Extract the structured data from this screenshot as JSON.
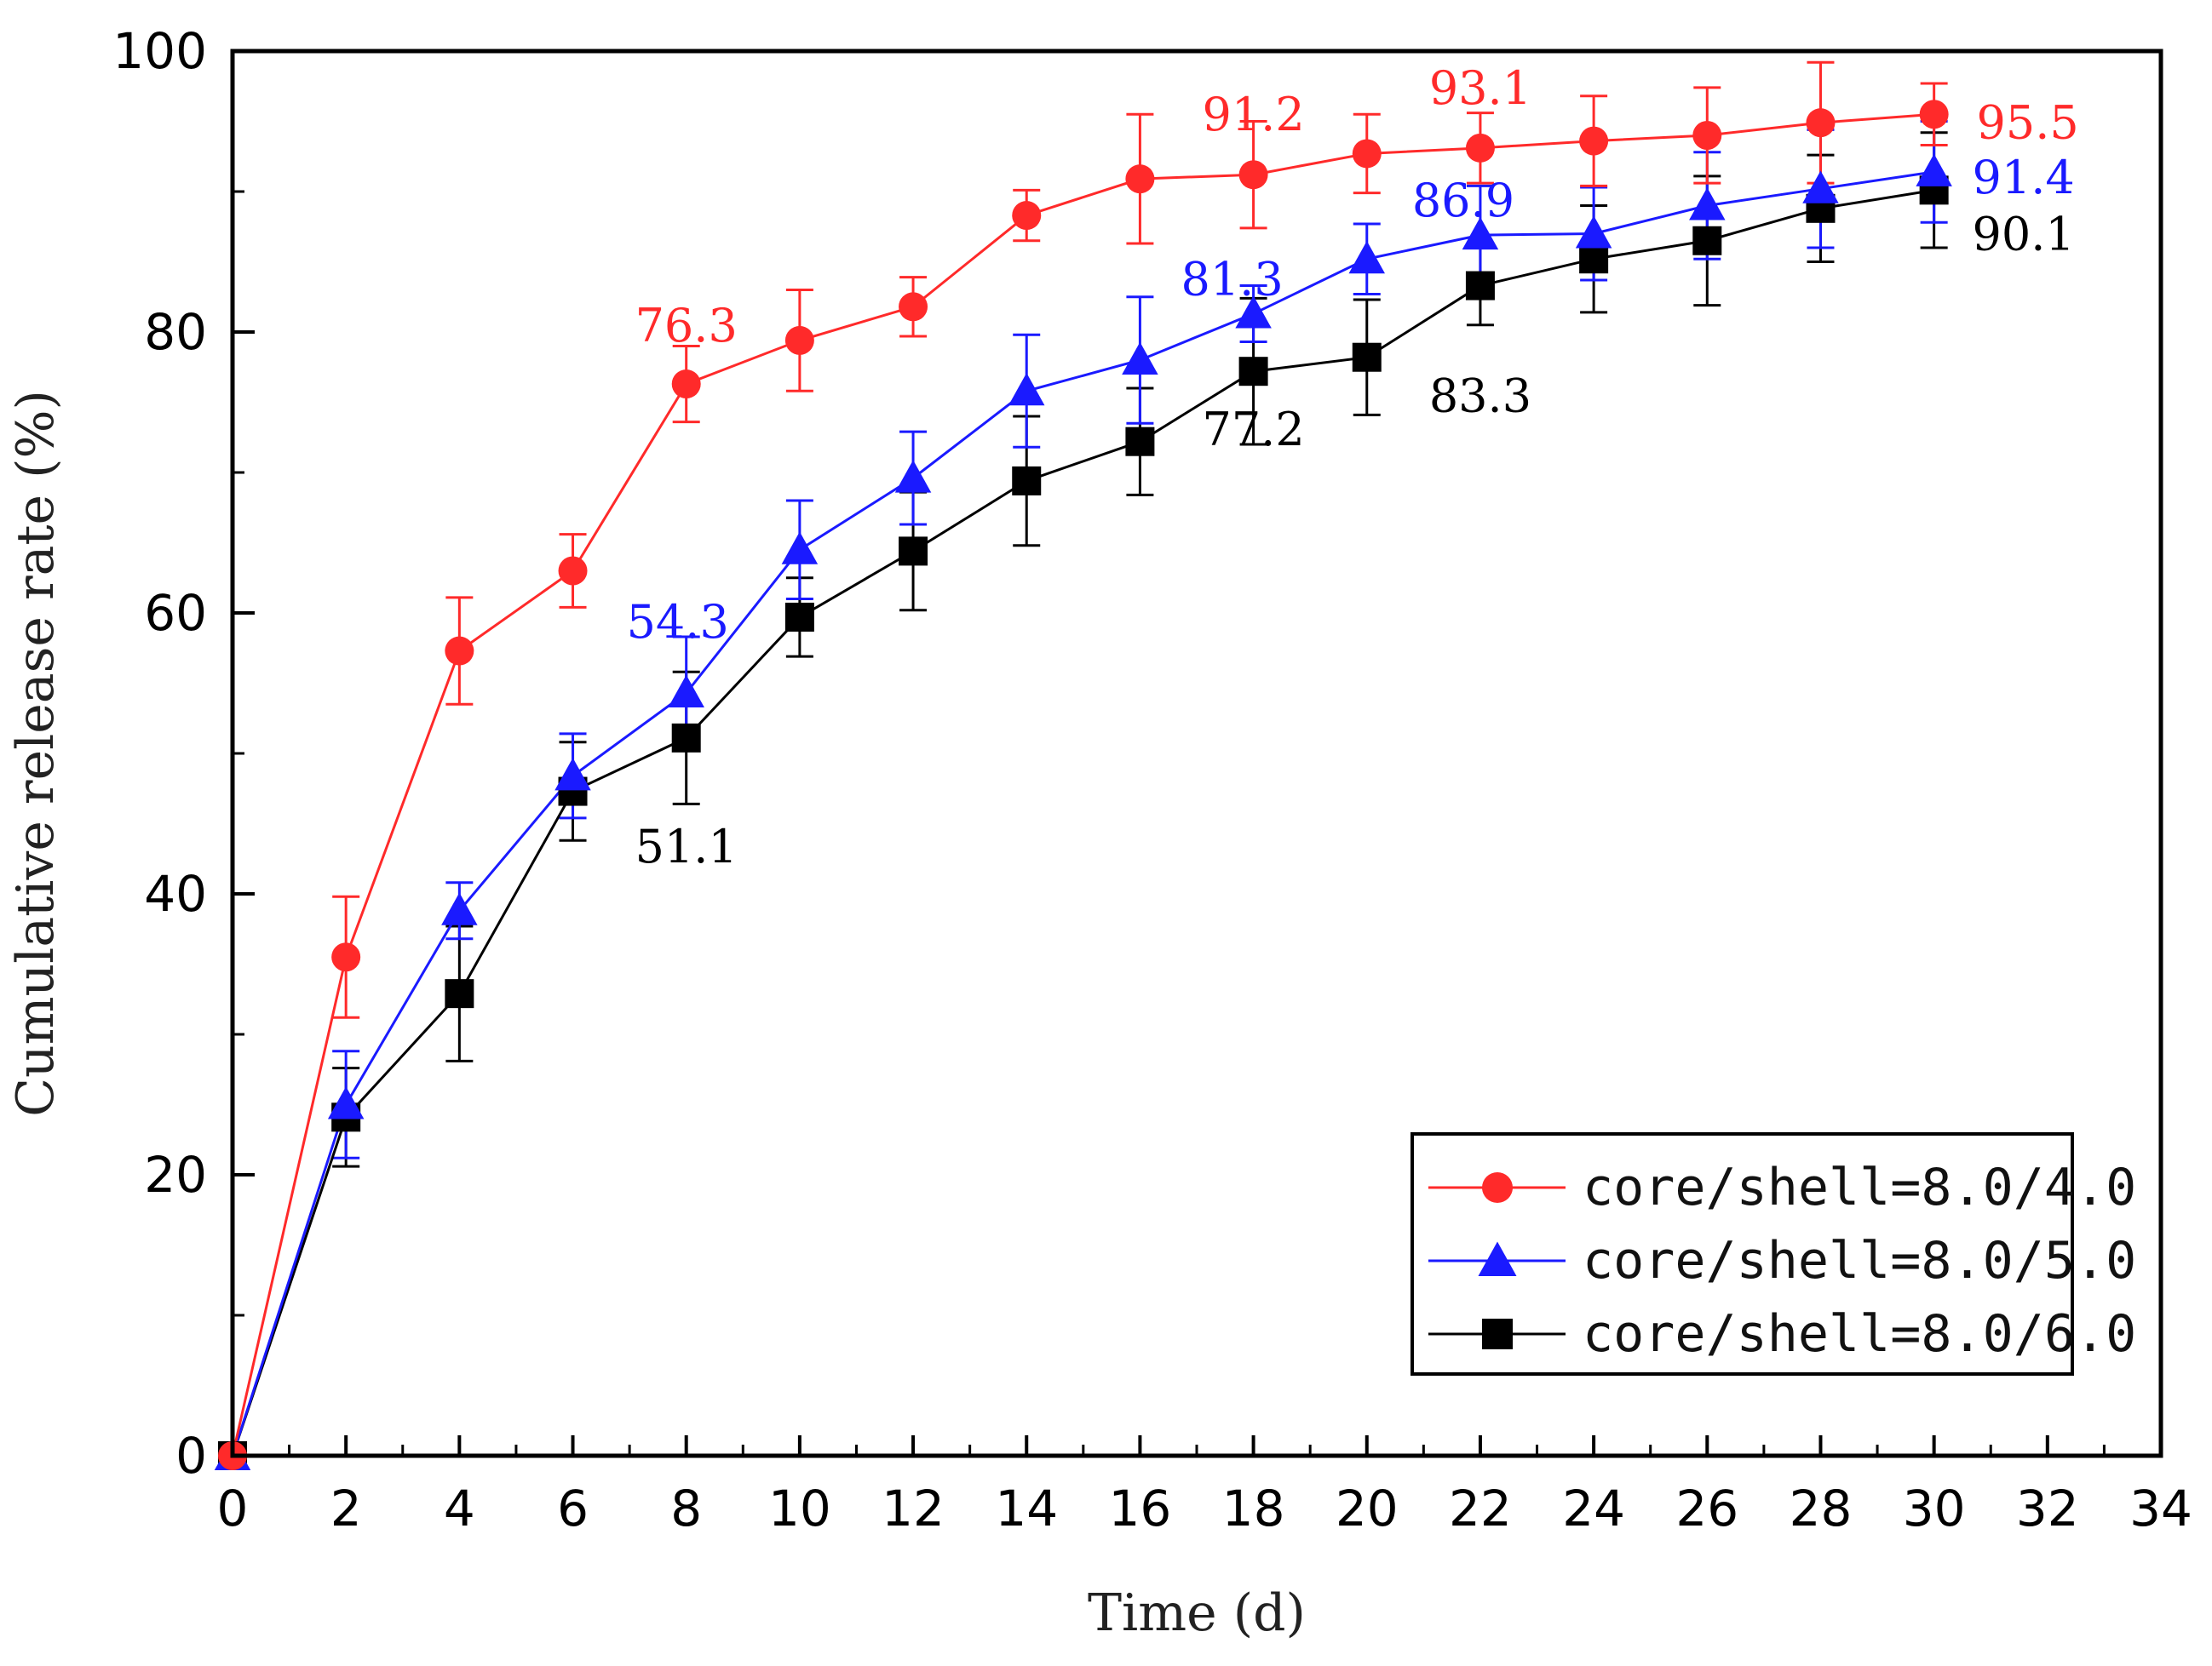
{
  "chart_data": {
    "type": "line",
    "title": "",
    "xlabel": "Time (d)",
    "ylabel": "Cumulative release rate (%)",
    "xlim": [
      0,
      34
    ],
    "ylim": [
      0,
      100
    ],
    "x_ticks": [
      0,
      2,
      4,
      6,
      8,
      10,
      12,
      14,
      16,
      18,
      20,
      22,
      24,
      26,
      28,
      30,
      32,
      34
    ],
    "x_tick_labels": [
      "0",
      "2",
      "4",
      "6",
      "8",
      "10",
      "12",
      "14",
      "16",
      "18",
      "20",
      "22",
      "24",
      "26",
      "28",
      "30",
      "32",
      "34"
    ],
    "y_ticks": [
      0,
      20,
      40,
      60,
      80,
      100
    ],
    "y_tick_labels": [
      "0",
      "20",
      "40",
      "60",
      "80",
      "100"
    ],
    "grid": false,
    "legend_position": "bottom-right",
    "x": [
      0,
      2,
      4,
      6,
      8,
      10,
      12,
      14,
      16,
      18,
      20,
      22,
      24,
      26,
      28,
      30
    ],
    "series": [
      {
        "name": "core/shell=8.0/4.0",
        "color": "#ff2a2a",
        "marker": "circle",
        "values": [
          0,
          35.5,
          57.3,
          63.0,
          76.3,
          79.4,
          81.8,
          88.3,
          90.9,
          91.2,
          92.7,
          93.1,
          93.6,
          94.0,
          94.9,
          95.5
        ],
        "errors": [
          0,
          4.3,
          3.8,
          2.6,
          2.7,
          3.6,
          2.1,
          1.8,
          4.6,
          3.8,
          2.8,
          2.5,
          3.2,
          3.4,
          4.3,
          2.2
        ]
      },
      {
        "name": "core/shell=8.0/5.0",
        "color": "#1a1aff",
        "marker": "triangle",
        "values": [
          0,
          25.0,
          38.8,
          48.4,
          54.3,
          64.5,
          69.6,
          75.8,
          78.0,
          81.3,
          85.2,
          86.9,
          87.0,
          89.0,
          90.2,
          91.4
        ],
        "errors": [
          0,
          3.8,
          2.0,
          3.0,
          4.0,
          3.5,
          3.3,
          4.0,
          4.5,
          2.0,
          2.5,
          3.5,
          3.3,
          3.8,
          4.2,
          3.6
        ]
      },
      {
        "name": "core/shell=8.0/6.0",
        "color": "#000000",
        "marker": "square",
        "values": [
          0,
          24.1,
          32.9,
          47.3,
          51.1,
          59.7,
          64.4,
          69.4,
          72.2,
          77.2,
          78.2,
          83.3,
          85.2,
          86.5,
          88.8,
          90.1
        ],
        "errors": [
          0,
          3.5,
          4.8,
          3.5,
          4.7,
          2.8,
          4.2,
          4.6,
          3.8,
          5.2,
          4.1,
          2.8,
          3.8,
          4.6,
          3.8,
          4.1
        ]
      }
    ],
    "annotations": [
      {
        "text": "76.3",
        "series": 0,
        "x": 8
      },
      {
        "text": "91.2",
        "series": 0,
        "x": 18
      },
      {
        "text": "93.1",
        "series": 0,
        "x": 22
      },
      {
        "text": "95.5",
        "series": 0,
        "x": 30
      },
      {
        "text": "54.3",
        "series": 1,
        "x": 8
      },
      {
        "text": "81.3",
        "series": 1,
        "x": 18
      },
      {
        "text": "86.9",
        "series": 1,
        "x": 22
      },
      {
        "text": "91.4",
        "series": 1,
        "x": 30
      },
      {
        "text": "51.1",
        "series": 2,
        "x": 8
      },
      {
        "text": "77.2",
        "series": 2,
        "x": 18
      },
      {
        "text": "83.3",
        "series": 2,
        "x": 22
      },
      {
        "text": "90.1",
        "series": 2,
        "x": 30
      }
    ]
  }
}
